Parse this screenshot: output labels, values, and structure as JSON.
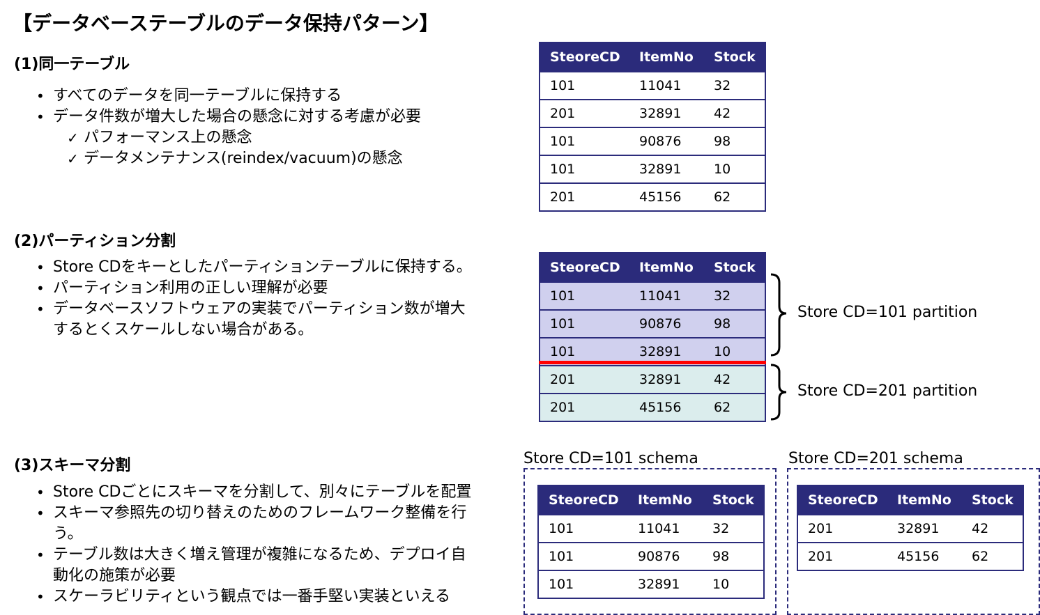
{
  "title": "【データベーステーブルのデータ保持パターン】",
  "columns": [
    "SteoreCD",
    "ItemNo",
    "Stock"
  ],
  "colors": {
    "header": "#2b2b7b",
    "partition101": "#d0d0ee",
    "partition201": "#dbeded",
    "divider": "#ff0000"
  },
  "section1": {
    "heading": "(1)同一テーブル",
    "bullets": [
      "すべてのデータを同一テーブルに保持する",
      "データ件数が増大した場合の懸念に対する考慮が必要"
    ],
    "subbullets": [
      "パフォーマンス上の懸念",
      "データメンテナンス(reindex/vacuum)の懸念"
    ],
    "rows": [
      [
        "101",
        "11041",
        "32"
      ],
      [
        "201",
        "32891",
        "42"
      ],
      [
        "101",
        "90876",
        "98"
      ],
      [
        "101",
        "32891",
        "10"
      ],
      [
        "201",
        "45156",
        "62"
      ]
    ]
  },
  "section2": {
    "heading": "(2)パーティション分割",
    "bullets": [
      "Store CDをキーとしたパーティションテーブルに保持する。",
      "パーティション利用の正しい理解が必要",
      "データベースソフトウェアの実装でパーティション数が増大するとくスケールしない場合がある。"
    ],
    "partition101_rows": [
      [
        "101",
        "11041",
        "32"
      ],
      [
        "101",
        "90876",
        "98"
      ],
      [
        "101",
        "32891",
        "10"
      ]
    ],
    "partition201_rows": [
      [
        "201",
        "32891",
        "42"
      ],
      [
        "201",
        "45156",
        "62"
      ]
    ],
    "partition101_label": "Store CD=101 partition",
    "partition201_label": "Store CD=201 partition"
  },
  "section3": {
    "heading": "(3)スキーマ分割",
    "bullets": [
      "Store CDごとにスキーマを分割して、別々にテーブルを配置",
      "スキーマ参照先の切り替えのためのフレームワーク整備を行う。",
      "テーブル数は大きく増え管理が複雑になるため、デプロイ自動化の施策が必要",
      "スケーラビリティという観点では一番手堅い実装といえる"
    ],
    "schema101_label": "Store CD=101 schema",
    "schema201_label": "Store CD=201 schema",
    "schema101_rows": [
      [
        "101",
        "11041",
        "32"
      ],
      [
        "101",
        "90876",
        "98"
      ],
      [
        "101",
        "32891",
        "10"
      ]
    ],
    "schema201_rows": [
      [
        "201",
        "32891",
        "42"
      ],
      [
        "201",
        "45156",
        "62"
      ]
    ]
  }
}
